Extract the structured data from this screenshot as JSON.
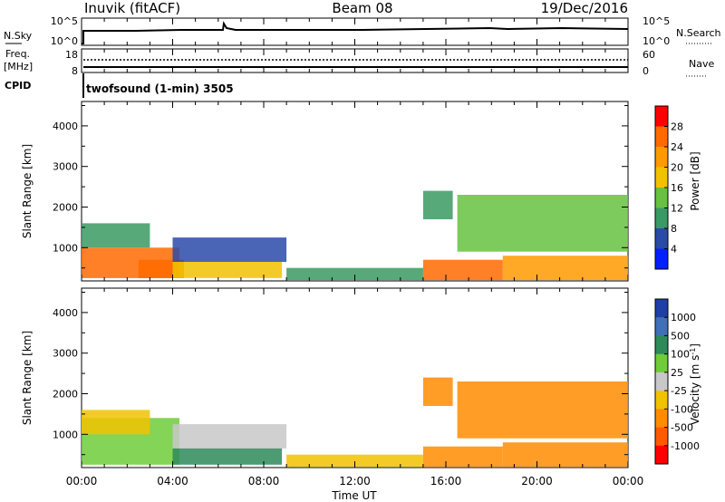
{
  "header": {
    "station": "Inuvik (fitACF)",
    "beam": "Beam 08",
    "date": "19/Dec/2016"
  },
  "top_panels": {
    "nsky_label": "N.Sky",
    "nsky_ticks": [
      "10^5",
      "10^0"
    ],
    "nsearch_label": "N.Search",
    "nsearch_ticks": [
      "10^5",
      "10^0"
    ],
    "freq_label": "Freq.",
    "freq_unit": "[MHz]",
    "freq_ticks": [
      "18",
      "8"
    ],
    "nave_label": "Nave",
    "nave_ticks": [
      "60",
      "0"
    ],
    "cpid_label": "CPID",
    "cpid_value": "twofsound (1-min) 3505"
  },
  "x_axis": {
    "ticks": [
      "00:00",
      "04:00",
      "08:00",
      "12:00",
      "16:00",
      "20:00",
      "00:00"
    ],
    "title": "Time UT"
  },
  "y_axis": {
    "title": "Slant Range [km]",
    "ticks": [
      "1000",
      "2000",
      "3000",
      "4000"
    ]
  },
  "power_scale": {
    "title": "Power [dB]",
    "labels": [
      "28",
      "24",
      "20",
      "16",
      "12",
      "8",
      "4"
    ],
    "colors": [
      "#ff0000",
      "#ff6a00",
      "#ff9a00",
      "#f2c200",
      "#66c240",
      "#3a9a63",
      "#2a4aa8",
      "#0020ff"
    ]
  },
  "velocity_scale": {
    "title": "Velocity [m s^-1]",
    "labels": [
      "1000",
      "500",
      "100",
      "25",
      "-25",
      "-100",
      "-500",
      "-1000"
    ],
    "colors": [
      "#1d3fa6",
      "#3f70b8",
      "#2e8a5a",
      "#6fcc3a",
      "#c8c8c8",
      "#f2c200",
      "#ff8c00",
      "#ff5a00",
      "#ff0000"
    ]
  },
  "chart_data": [
    {
      "type": "heatmap",
      "title": "Power",
      "xlabel": "Time UT",
      "ylabel": "Slant Range [km]",
      "xlim_hours": [
        0,
        24
      ],
      "ylim_km": [
        180,
        4600
      ],
      "zlabel": "Power [dB]",
      "zlim": [
        0,
        32
      ],
      "regions": [
        {
          "t0": 0.0,
          "t1": 4.3,
          "r0": 250,
          "r1": 1000,
          "value": 28
        },
        {
          "t0": 0.0,
          "t1": 3.0,
          "r0": 1000,
          "r1": 1600,
          "value": 10
        },
        {
          "t0": 2.5,
          "t1": 4.5,
          "r0": 250,
          "r1": 700,
          "value": 28
        },
        {
          "t0": 4.0,
          "t1": 8.8,
          "r0": 250,
          "r1": 650,
          "value": 18
        },
        {
          "t0": 4.0,
          "t1": 9.0,
          "r0": 650,
          "r1": 1250,
          "value": 6
        },
        {
          "t0": 9.0,
          "t1": 15.0,
          "r0": 200,
          "r1": 500,
          "value": 10
        },
        {
          "t0": 15.0,
          "t1": 18.5,
          "r0": 200,
          "r1": 700,
          "value": 28
        },
        {
          "t0": 18.5,
          "t1": 24.0,
          "r0": 200,
          "r1": 800,
          "value": 22
        },
        {
          "t0": 15.0,
          "t1": 16.3,
          "r0": 1700,
          "r1": 2400,
          "value": 10
        },
        {
          "t0": 16.5,
          "t1": 24.0,
          "r0": 900,
          "r1": 2300,
          "value": 14
        }
      ]
    },
    {
      "type": "heatmap",
      "title": "Velocity",
      "xlabel": "Time UT",
      "ylabel": "Slant Range [km]",
      "xlim_hours": [
        0,
        24
      ],
      "ylim_km": [
        180,
        4600
      ],
      "zlabel": "Velocity [m s^-1]",
      "zlim": [
        -1000,
        1000
      ],
      "regions": [
        {
          "t0": 0.0,
          "t1": 4.3,
          "r0": 250,
          "r1": 1400,
          "value": 50
        },
        {
          "t0": 0.0,
          "t1": 3.0,
          "r0": 1000,
          "r1": 1600,
          "value": -100
        },
        {
          "t0": 4.0,
          "t1": 9.0,
          "r0": 650,
          "r1": 1250,
          "value": 0
        },
        {
          "t0": 4.0,
          "t1": 8.8,
          "r0": 250,
          "r1": 650,
          "value": 100
        },
        {
          "t0": 9.0,
          "t1": 15.0,
          "r0": 200,
          "r1": 500,
          "value": -100
        },
        {
          "t0": 15.0,
          "t1": 18.5,
          "r0": 200,
          "r1": 700,
          "value": -300
        },
        {
          "t0": 18.5,
          "t1": 24.0,
          "r0": 200,
          "r1": 800,
          "value": -300
        },
        {
          "t0": 15.0,
          "t1": 16.3,
          "r0": 1700,
          "r1": 2400,
          "value": -200
        },
        {
          "t0": 16.5,
          "t1": 24.0,
          "r0": 900,
          "r1": 2300,
          "value": -300
        }
      ]
    }
  ]
}
